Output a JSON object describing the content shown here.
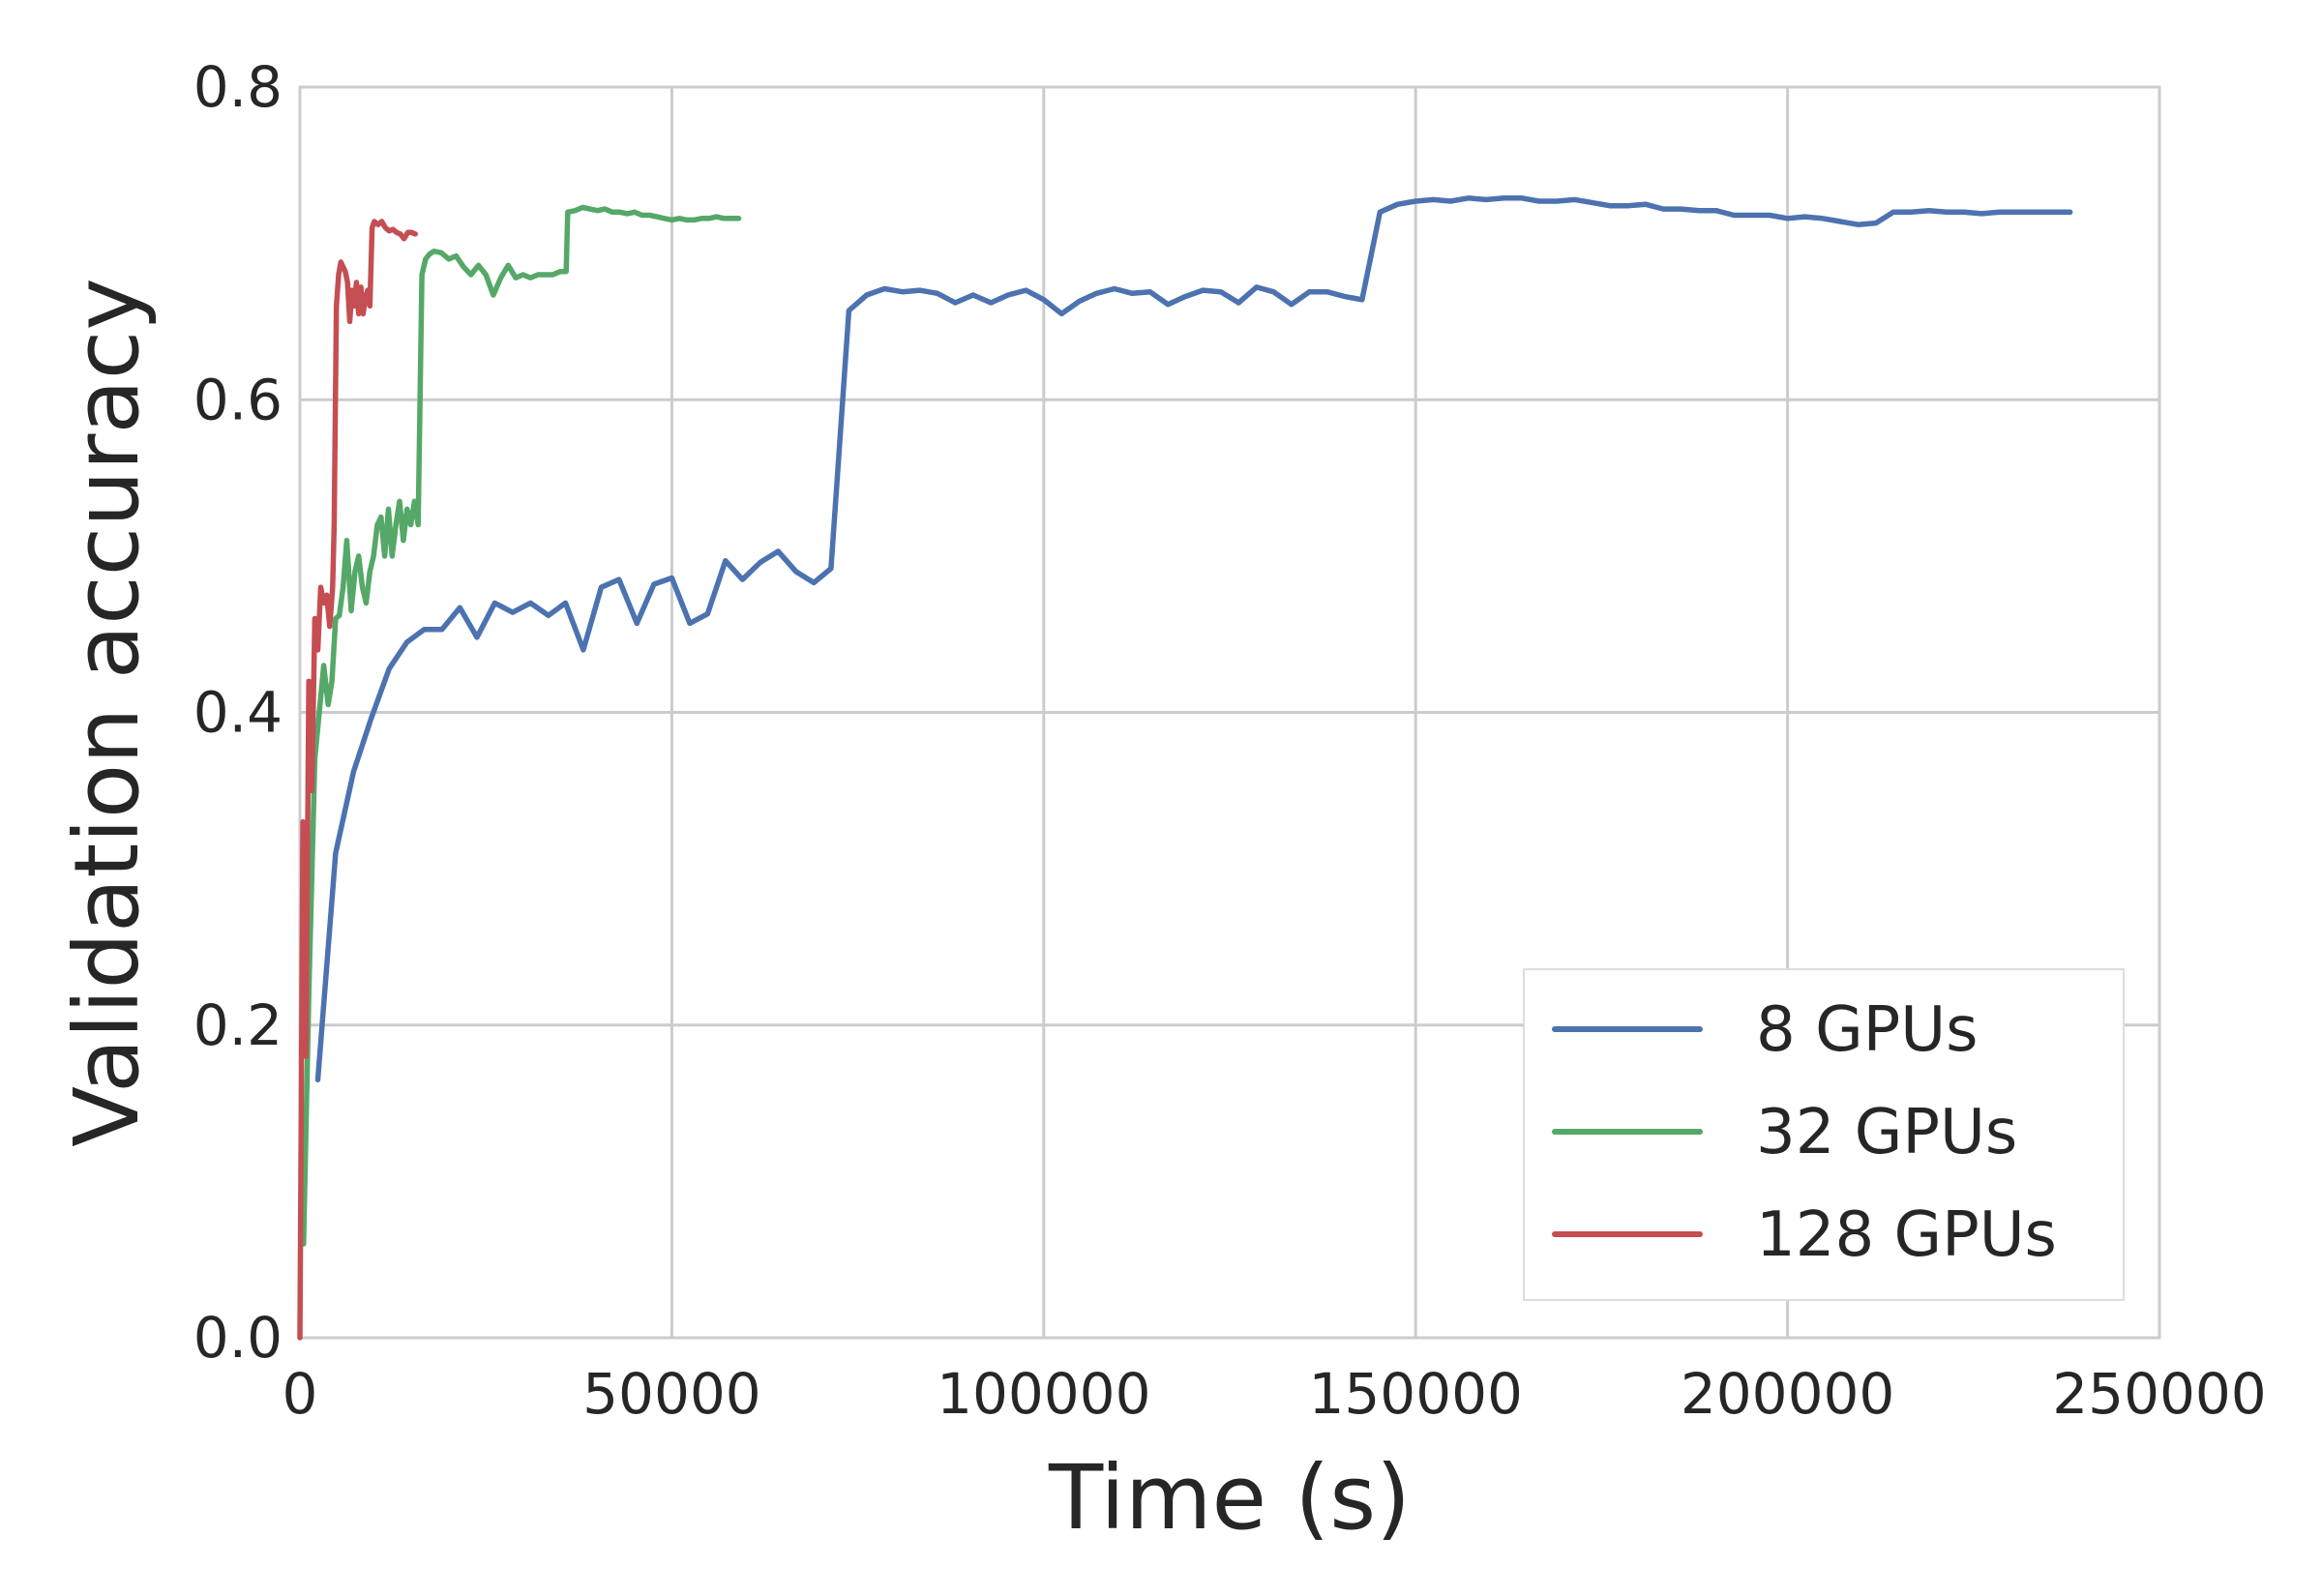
{
  "chart_data": {
    "type": "line",
    "title": "",
    "xlabel": "Time (s)",
    "ylabel": "Validation accuracy",
    "xlim": [
      0,
      250000
    ],
    "ylim": [
      0.0,
      0.8
    ],
    "xticks": [
      0,
      50000,
      100000,
      150000,
      200000,
      250000
    ],
    "yticks": [
      0.0,
      0.2,
      0.4,
      0.6,
      0.8
    ],
    "xtick_labels": [
      "0",
      "50000",
      "100000",
      "150000",
      "200000",
      "250000"
    ],
    "ytick_labels": [
      "0.0",
      "0.2",
      "0.4",
      "0.6",
      "0.8"
    ],
    "grid": true,
    "legend_position": "lower-right",
    "series": [
      {
        "name": "8 GPUs",
        "color": "#4c72b0",
        "x": [
          2400,
          4800,
          7200,
          9500,
          12000,
          14400,
          16700,
          19100,
          21500,
          23800,
          26200,
          28600,
          31000,
          33400,
          35700,
          38100,
          40500,
          42900,
          45300,
          47600,
          50000,
          52400,
          54800,
          57200,
          59500,
          61900,
          64300,
          66700,
          69100,
          71400,
          73800,
          76200,
          78600,
          81000,
          83300,
          85700,
          88100,
          90500,
          92900,
          95200,
          97600,
          100000,
          102400,
          104800,
          107100,
          109500,
          111900,
          114300,
          116700,
          119000,
          121400,
          123800,
          126200,
          128600,
          130900,
          133300,
          135700,
          138100,
          140500,
          142800,
          145200,
          147600,
          150000,
          152400,
          154700,
          157100,
          159500,
          161900,
          164300,
          166600,
          169000,
          171400,
          173800,
          176200,
          178500,
          180900,
          183300,
          185700,
          188100,
          190400,
          192800,
          195200,
          197600,
          200000,
          202300,
          204700,
          207100,
          209500,
          211900,
          214200,
          216600,
          219000,
          221400,
          223800,
          226100,
          228500,
          230900,
          233300,
          235700,
          238000
        ],
        "y": [
          0.165,
          0.31,
          0.362,
          0.395,
          0.428,
          0.445,
          0.453,
          0.453,
          0.467,
          0.448,
          0.47,
          0.464,
          0.47,
          0.462,
          0.47,
          0.44,
          0.48,
          0.485,
          0.457,
          0.482,
          0.486,
          0.457,
          0.463,
          0.497,
          0.485,
          0.496,
          0.503,
          0.49,
          0.483,
          0.492,
          0.657,
          0.667,
          0.671,
          0.669,
          0.67,
          0.668,
          0.662,
          0.667,
          0.662,
          0.667,
          0.67,
          0.664,
          0.655,
          0.663,
          0.668,
          0.671,
          0.668,
          0.669,
          0.661,
          0.666,
          0.67,
          0.669,
          0.662,
          0.672,
          0.669,
          0.661,
          0.669,
          0.669,
          0.666,
          0.664,
          0.72,
          0.725,
          0.727,
          0.728,
          0.727,
          0.729,
          0.728,
          0.729,
          0.729,
          0.727,
          0.727,
          0.728,
          0.726,
          0.724,
          0.724,
          0.725,
          0.722,
          0.722,
          0.721,
          0.721,
          0.718,
          0.718,
          0.718,
          0.716,
          0.717,
          0.716,
          0.714,
          0.712,
          0.713,
          0.72,
          0.72,
          0.721,
          0.72,
          0.72,
          0.719,
          0.72,
          0.72,
          0.72,
          0.72,
          0.72
        ]
      },
      {
        "name": "32 GPUs",
        "color": "#55a868",
        "x": [
          500,
          1200,
          2000,
          2600,
          3200,
          3800,
          4300,
          4800,
          5300,
          5800,
          6300,
          6900,
          7400,
          7900,
          8400,
          8900,
          9400,
          9900,
          10400,
          10900,
          11400,
          11900,
          12400,
          12900,
          13400,
          13900,
          14400,
          14900,
          15400,
          15900,
          16400,
          16900,
          17400,
          18000,
          19000,
          20000,
          21000,
          22000,
          23000,
          24000,
          25000,
          26000,
          27000,
          28000,
          29000,
          30000,
          31000,
          32000,
          33000,
          34000,
          35000,
          35800,
          36000,
          37000,
          38000,
          39000,
          40000,
          41000,
          42000,
          43000,
          44000,
          45000,
          46000,
          47000,
          48000,
          49000,
          50000,
          51000,
          52000,
          53000,
          54000,
          55000,
          56000,
          57000,
          58000,
          59000
        ],
        "y": [
          0.06,
          0.22,
          0.37,
          0.4,
          0.43,
          0.405,
          0.42,
          0.46,
          0.462,
          0.48,
          0.51,
          0.465,
          0.49,
          0.5,
          0.48,
          0.47,
          0.49,
          0.5,
          0.52,
          0.525,
          0.5,
          0.53,
          0.5,
          0.52,
          0.535,
          0.51,
          0.53,
          0.52,
          0.535,
          0.52,
          0.68,
          0.69,
          0.693,
          0.695,
          0.694,
          0.69,
          0.692,
          0.685,
          0.68,
          0.686,
          0.68,
          0.667,
          0.678,
          0.686,
          0.678,
          0.68,
          0.678,
          0.68,
          0.68,
          0.68,
          0.682,
          0.682,
          0.72,
          0.721,
          0.723,
          0.722,
          0.721,
          0.722,
          0.72,
          0.72,
          0.719,
          0.72,
          0.718,
          0.718,
          0.717,
          0.716,
          0.715,
          0.716,
          0.715,
          0.715,
          0.716,
          0.716,
          0.717,
          0.716,
          0.716,
          0.716
        ]
      },
      {
        "name": "128 GPUs",
        "color": "#c44e52",
        "x": [
          0,
          400,
          800,
          1200,
          1600,
          2000,
          2400,
          2800,
          3200,
          3600,
          4000,
          4400,
          4600,
          4900,
          5200,
          5500,
          5800,
          6100,
          6400,
          6700,
          7000,
          7300,
          7600,
          7900,
          8200,
          8500,
          8800,
          9100,
          9400,
          9700,
          10000,
          10500,
          11000,
          11500,
          12000,
          12500,
          13000,
          13500,
          14000,
          14500,
          15000,
          15500
        ],
        "y": [
          0.0,
          0.33,
          0.18,
          0.42,
          0.35,
          0.46,
          0.44,
          0.48,
          0.47,
          0.475,
          0.455,
          0.48,
          0.52,
          0.66,
          0.68,
          0.688,
          0.685,
          0.682,
          0.675,
          0.65,
          0.67,
          0.66,
          0.675,
          0.655,
          0.672,
          0.655,
          0.665,
          0.67,
          0.66,
          0.71,
          0.714,
          0.712,
          0.714,
          0.71,
          0.708,
          0.709,
          0.707,
          0.706,
          0.703,
          0.707,
          0.707,
          0.706
        ]
      }
    ]
  }
}
